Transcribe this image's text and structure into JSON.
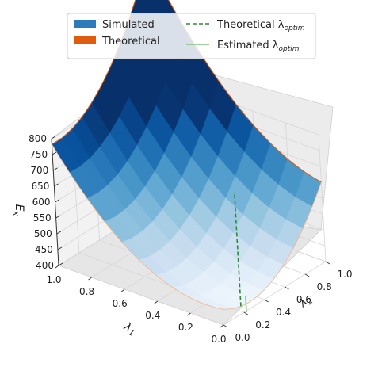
{
  "chart_data": {
    "type": "surface3d",
    "title": "",
    "axes": {
      "x": {
        "label": "λ₁",
        "ticks": [
          "1.0",
          "0.8",
          "0.6",
          "0.4",
          "0.2",
          "0.0"
        ],
        "range": [
          0,
          1
        ]
      },
      "y": {
        "label": "λ₂",
        "ticks": [
          "0.0",
          "0.2",
          "0.4",
          "0.6",
          "0.8",
          "1.0"
        ],
        "range": [
          0,
          1
        ]
      },
      "z": {
        "label": "Eκ",
        "ticks": [
          "400",
          "450",
          "500",
          "550",
          "600",
          "650",
          "700",
          "750",
          "800"
        ],
        "range": [
          400,
          800
        ]
      }
    },
    "surface_model": {
      "description": "E = 420 + 420*(λ1-0.05)^2 + 420*(λ2-0.25)^2 + 180*(λ1-0.05)*(λ2-0.25)",
      "grid": 11,
      "colormap": "Blues"
    },
    "lambda_optim": {
      "lambda1": 0.05,
      "lambda2": 0.25
    },
    "grid": true,
    "legend": {
      "placement": "top-center",
      "entries": [
        {
          "label": "Simulated",
          "style": "patch",
          "color": "#2b7bba"
        },
        {
          "label": "Theoretical",
          "style": "patch",
          "color": "#e05b0d"
        },
        {
          "label": "Theoretical λ",
          "subscript": "optim",
          "style": "dashed",
          "color": "#2e8b3a"
        },
        {
          "label": "Estimated λ",
          "subscript": "optim",
          "style": "solid",
          "color": "#7dc47d"
        }
      ]
    }
  }
}
